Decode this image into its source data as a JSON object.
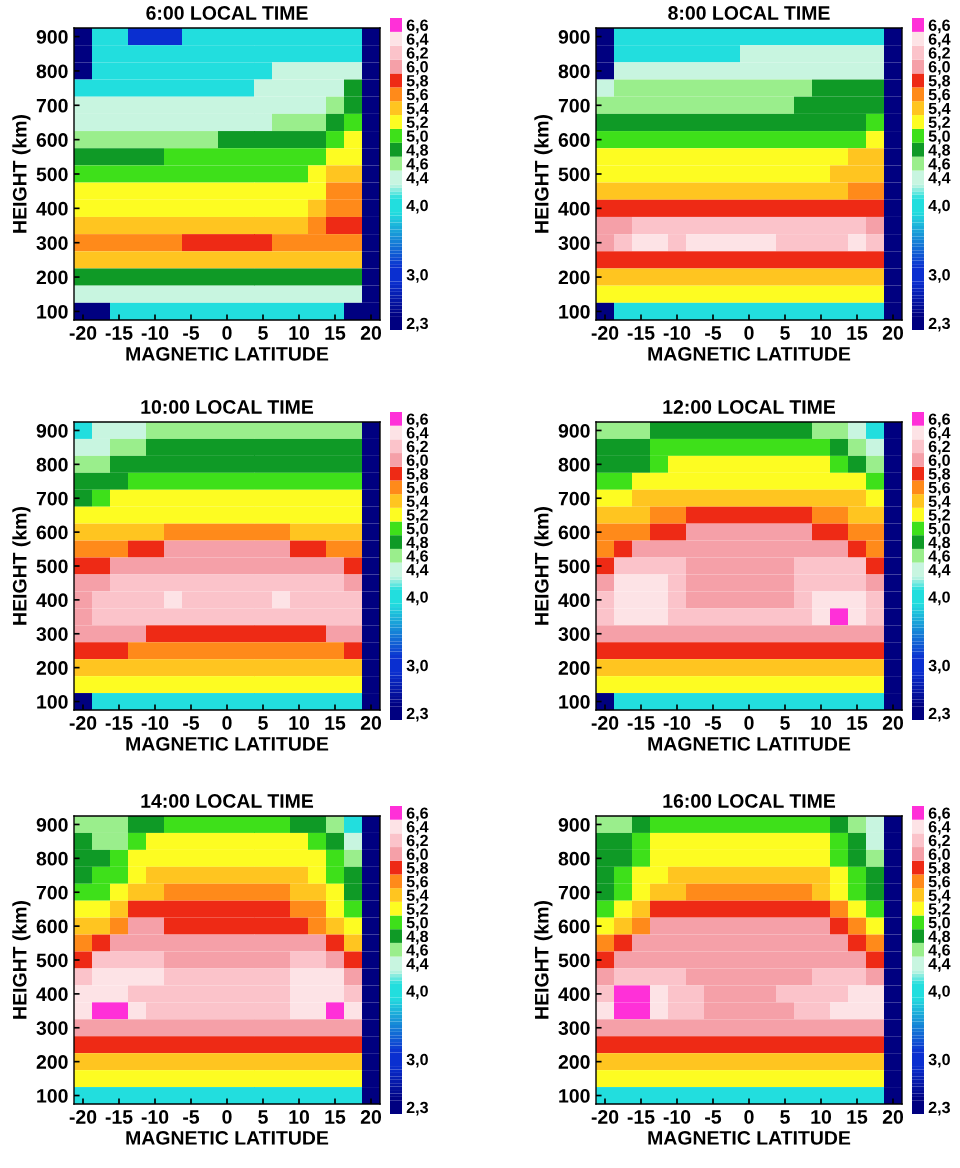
{
  "chart_data": [
    {
      "type": "heatmap",
      "title": "6:00 LOCAL TIME",
      "xlabel": "MAGNETIC LATITUDE",
      "ylabel": "HEIGHT (km)",
      "categories": [
        "-20",
        null,
        "-15",
        null,
        "-10",
        null,
        "-5",
        null,
        "0",
        null,
        "5",
        null,
        "10",
        null,
        "15",
        null,
        "20"
      ],
      "y_categories": [
        "900",
        null,
        "800",
        null,
        "700",
        null,
        "600",
        null,
        "500",
        null,
        "400",
        null,
        "300",
        null,
        "200",
        null,
        "100"
      ],
      "cticks": [
        {
          "value": 2.3,
          "label": "2,3"
        },
        {
          "value": 3.0,
          "label": "3,0"
        },
        {
          "value": 4.0,
          "label": "4,0"
        },
        {
          "value": 4.4,
          "label": "4,4"
        },
        {
          "value": 4.6,
          "label": "4,6"
        },
        {
          "value": 4.8,
          "label": "4,8"
        },
        {
          "value": 5.0,
          "label": "5,0"
        },
        {
          "value": 5.2,
          "label": "5,2"
        },
        {
          "value": 5.4,
          "label": "5,4"
        },
        {
          "value": 5.6,
          "label": "5,6"
        },
        {
          "value": 5.8,
          "label": "5,8"
        },
        {
          "value": 6.0,
          "label": "6,0"
        },
        {
          "value": 6.2,
          "label": "6,2"
        },
        {
          "value": 6.4,
          "label": "6,4"
        },
        {
          "value": 6.6,
          "label": "6,6"
        }
      ],
      "cells": [
        [
          2.3,
          4.0,
          4.0,
          3.0,
          3.0,
          3.0,
          4.0,
          4.0,
          4.0,
          4.0,
          4.0,
          4.0,
          4.0,
          4.0,
          4.0,
          4.0,
          2.3
        ],
        [
          2.3,
          4.0,
          4.0,
          4.0,
          4.0,
          4.0,
          4.0,
          4.0,
          4.0,
          4.0,
          4.0,
          4.0,
          4.0,
          4.0,
          4.0,
          4.0,
          2.3
        ],
        [
          2.3,
          4.0,
          4.0,
          4.0,
          4.0,
          4.0,
          4.0,
          4.0,
          4.0,
          4.0,
          4.0,
          4.4,
          4.4,
          4.4,
          4.4,
          4.4,
          2.3
        ],
        [
          4.0,
          4.0,
          4.0,
          4.0,
          4.0,
          4.0,
          4.0,
          4.0,
          4.0,
          4.0,
          4.4,
          4.4,
          4.4,
          4.4,
          4.4,
          4.8,
          2.3
        ],
        [
          4.4,
          4.4,
          4.4,
          4.4,
          4.4,
          4.4,
          4.4,
          4.4,
          4.4,
          4.4,
          4.4,
          4.4,
          4.4,
          4.4,
          4.6,
          4.8,
          2.3
        ],
        [
          4.4,
          4.4,
          4.4,
          4.4,
          4.4,
          4.4,
          4.4,
          4.4,
          4.4,
          4.4,
          4.4,
          4.6,
          4.6,
          4.6,
          4.8,
          5.0,
          2.3
        ],
        [
          4.6,
          4.6,
          4.6,
          4.6,
          4.6,
          4.6,
          4.6,
          4.6,
          4.8,
          4.8,
          4.8,
          4.8,
          4.8,
          4.8,
          5.0,
          5.2,
          2.3
        ],
        [
          4.8,
          4.8,
          4.8,
          4.8,
          4.8,
          5.0,
          5.0,
          5.0,
          5.0,
          5.0,
          5.0,
          5.0,
          5.0,
          5.0,
          5.2,
          5.2,
          2.3
        ],
        [
          5.0,
          5.0,
          5.0,
          5.0,
          5.0,
          5.0,
          5.0,
          5.0,
          5.0,
          5.0,
          5.0,
          5.0,
          5.0,
          5.2,
          5.4,
          5.4,
          2.3
        ],
        [
          5.2,
          5.2,
          5.2,
          5.2,
          5.2,
          5.2,
          5.2,
          5.2,
          5.2,
          5.2,
          5.2,
          5.2,
          5.2,
          5.2,
          5.6,
          5.6,
          2.3
        ],
        [
          5.2,
          5.2,
          5.2,
          5.2,
          5.2,
          5.2,
          5.2,
          5.2,
          5.2,
          5.2,
          5.2,
          5.2,
          5.2,
          5.4,
          5.6,
          5.6,
          2.3
        ],
        [
          5.4,
          5.4,
          5.4,
          5.4,
          5.4,
          5.4,
          5.4,
          5.4,
          5.4,
          5.4,
          5.4,
          5.4,
          5.4,
          5.6,
          5.8,
          5.8,
          2.3
        ],
        [
          5.6,
          5.6,
          5.6,
          5.6,
          5.6,
          5.6,
          5.8,
          5.8,
          5.8,
          5.8,
          5.8,
          5.6,
          5.6,
          5.6,
          5.6,
          5.6,
          2.3
        ],
        [
          5.4,
          5.4,
          5.4,
          5.4,
          5.4,
          5.4,
          5.4,
          5.4,
          5.4,
          5.4,
          5.4,
          5.4,
          5.4,
          5.4,
          5.4,
          5.4,
          2.3
        ],
        [
          4.8,
          4.8,
          4.8,
          4.8,
          4.8,
          4.8,
          4.8,
          4.8,
          4.8,
          4.8,
          4.8,
          4.8,
          4.8,
          4.8,
          4.8,
          4.8,
          2.3
        ],
        [
          4.4,
          4.4,
          4.4,
          4.4,
          4.4,
          4.4,
          4.4,
          4.4,
          4.4,
          4.4,
          4.4,
          4.4,
          4.4,
          4.4,
          4.4,
          4.4,
          2.3
        ],
        [
          2.3,
          2.3,
          4.0,
          4.0,
          4.0,
          4.0,
          4.0,
          4.0,
          4.0,
          4.0,
          4.0,
          4.0,
          4.0,
          4.0,
          4.0,
          2.3,
          2.3
        ]
      ]
    },
    {
      "type": "heatmap",
      "title": "8:00 LOCAL TIME",
      "xlabel": "MAGNETIC LATITUDE",
      "ylabel": "HEIGHT (km)",
      "categories": [
        "-20",
        null,
        "-15",
        null,
        "-10",
        null,
        "-5",
        null,
        "0",
        null,
        "5",
        null,
        "10",
        null,
        "15",
        null,
        "20"
      ],
      "y_categories": [
        "900",
        null,
        "800",
        null,
        "700",
        null,
        "600",
        null,
        "500",
        null,
        "400",
        null,
        "300",
        null,
        "200",
        null,
        "100"
      ],
      "cticks": [
        {
          "value": 2.3,
          "label": "2,3"
        },
        {
          "value": 3.0,
          "label": "3,0"
        },
        {
          "value": 4.0,
          "label": "4,0"
        },
        {
          "value": 4.4,
          "label": "4,4"
        },
        {
          "value": 4.6,
          "label": "4,6"
        },
        {
          "value": 4.8,
          "label": "4,8"
        },
        {
          "value": 5.0,
          "label": "5,0"
        },
        {
          "value": 5.2,
          "label": "5,2"
        },
        {
          "value": 5.4,
          "label": "5,4"
        },
        {
          "value": 5.6,
          "label": "5,6"
        },
        {
          "value": 5.8,
          "label": "5,8"
        },
        {
          "value": 6.0,
          "label": "6,0"
        },
        {
          "value": 6.2,
          "label": "6,2"
        },
        {
          "value": 6.4,
          "label": "6,4"
        },
        {
          "value": 6.6,
          "label": "6,6"
        }
      ],
      "cells": [
        [
          2.3,
          4.0,
          4.0,
          4.0,
          4.0,
          4.0,
          4.0,
          4.0,
          4.0,
          4.0,
          4.0,
          4.0,
          4.0,
          4.0,
          4.0,
          4.0,
          2.3
        ],
        [
          2.3,
          4.0,
          4.0,
          4.0,
          4.0,
          4.0,
          4.0,
          4.0,
          4.4,
          4.4,
          4.4,
          4.4,
          4.4,
          4.4,
          4.4,
          4.4,
          2.3
        ],
        [
          2.3,
          4.4,
          4.4,
          4.4,
          4.4,
          4.4,
          4.4,
          4.4,
          4.4,
          4.4,
          4.4,
          4.4,
          4.4,
          4.4,
          4.4,
          4.4,
          2.3
        ],
        [
          4.4,
          4.6,
          4.6,
          4.6,
          4.6,
          4.6,
          4.6,
          4.6,
          4.6,
          4.6,
          4.6,
          4.6,
          4.8,
          4.8,
          4.8,
          4.8,
          2.3
        ],
        [
          4.6,
          4.6,
          4.6,
          4.6,
          4.6,
          4.6,
          4.6,
          4.6,
          4.6,
          4.6,
          4.6,
          4.8,
          4.8,
          4.8,
          4.8,
          4.8,
          2.3
        ],
        [
          4.8,
          4.8,
          4.8,
          4.8,
          4.8,
          4.8,
          4.8,
          4.8,
          4.8,
          4.8,
          4.8,
          4.8,
          4.8,
          4.8,
          4.8,
          5.0,
          2.3
        ],
        [
          5.0,
          5.0,
          5.0,
          5.0,
          5.0,
          5.0,
          5.0,
          5.0,
          5.0,
          5.0,
          5.0,
          5.0,
          5.0,
          5.0,
          5.0,
          5.2,
          2.3
        ],
        [
          5.2,
          5.2,
          5.2,
          5.2,
          5.2,
          5.2,
          5.2,
          5.2,
          5.2,
          5.2,
          5.2,
          5.2,
          5.2,
          5.2,
          5.4,
          5.4,
          2.3
        ],
        [
          5.2,
          5.2,
          5.2,
          5.2,
          5.2,
          5.2,
          5.2,
          5.2,
          5.2,
          5.2,
          5.2,
          5.2,
          5.2,
          5.4,
          5.4,
          5.4,
          2.3
        ],
        [
          5.4,
          5.4,
          5.4,
          5.4,
          5.4,
          5.4,
          5.4,
          5.4,
          5.4,
          5.4,
          5.4,
          5.4,
          5.4,
          5.4,
          5.6,
          5.6,
          2.3
        ],
        [
          5.8,
          5.8,
          5.8,
          5.8,
          5.8,
          5.8,
          5.8,
          5.8,
          5.8,
          5.8,
          5.8,
          5.8,
          5.8,
          5.8,
          5.8,
          5.8,
          2.3
        ],
        [
          6.0,
          6.0,
          6.2,
          6.2,
          6.2,
          6.2,
          6.2,
          6.2,
          6.2,
          6.2,
          6.2,
          6.2,
          6.2,
          6.2,
          6.2,
          6.0,
          2.3
        ],
        [
          6.0,
          6.2,
          6.4,
          6.4,
          6.2,
          6.4,
          6.4,
          6.4,
          6.4,
          6.4,
          6.2,
          6.2,
          6.2,
          6.2,
          6.4,
          6.2,
          2.3
        ],
        [
          5.8,
          5.8,
          5.8,
          5.8,
          5.8,
          5.8,
          5.8,
          5.8,
          5.8,
          5.8,
          5.8,
          5.8,
          5.8,
          5.8,
          5.8,
          5.8,
          2.3
        ],
        [
          5.4,
          5.4,
          5.4,
          5.4,
          5.4,
          5.4,
          5.4,
          5.4,
          5.4,
          5.4,
          5.4,
          5.4,
          5.4,
          5.4,
          5.4,
          5.4,
          2.3
        ],
        [
          5.2,
          5.2,
          5.2,
          5.2,
          5.2,
          5.2,
          5.2,
          5.2,
          5.2,
          5.2,
          5.2,
          5.2,
          5.2,
          5.2,
          5.2,
          5.2,
          2.3
        ],
        [
          2.3,
          4.0,
          4.0,
          4.0,
          4.0,
          4.0,
          4.0,
          4.0,
          4.0,
          4.0,
          4.0,
          4.0,
          4.0,
          4.0,
          4.0,
          4.0,
          2.3
        ]
      ]
    },
    {
      "type": "heatmap",
      "title": "10:00 LOCAL TIME",
      "xlabel": "MAGNETIC LATITUDE",
      "ylabel": "HEIGHT (km)",
      "categories": [
        "-20",
        null,
        "-15",
        null,
        "-10",
        null,
        "-5",
        null,
        "0",
        null,
        "5",
        null,
        "10",
        null,
        "15",
        null,
        "20"
      ],
      "y_categories": [
        "900",
        null,
        "800",
        null,
        "700",
        null,
        "600",
        null,
        "500",
        null,
        "400",
        null,
        "300",
        null,
        "200",
        null,
        "100"
      ],
      "cticks": [
        {
          "value": 2.3,
          "label": "2,3"
        },
        {
          "value": 3.0,
          "label": "3,0"
        },
        {
          "value": 4.0,
          "label": "4,0"
        },
        {
          "value": 4.4,
          "label": "4,4"
        },
        {
          "value": 4.6,
          "label": "4,6"
        },
        {
          "value": 4.8,
          "label": "4,8"
        },
        {
          "value": 5.0,
          "label": "5,0"
        },
        {
          "value": 5.2,
          "label": "5,2"
        },
        {
          "value": 5.4,
          "label": "5,4"
        },
        {
          "value": 5.6,
          "label": "5,6"
        },
        {
          "value": 5.8,
          "label": "5,8"
        },
        {
          "value": 6.0,
          "label": "6,0"
        },
        {
          "value": 6.2,
          "label": "6,2"
        },
        {
          "value": 6.4,
          "label": "6,4"
        },
        {
          "value": 6.6,
          "label": "6,6"
        }
      ],
      "cells": [
        [
          4.0,
          4.4,
          4.4,
          4.4,
          4.6,
          4.6,
          4.6,
          4.6,
          4.6,
          4.6,
          4.6,
          4.6,
          4.6,
          4.6,
          4.6,
          4.6,
          2.3
        ],
        [
          4.4,
          4.4,
          4.6,
          4.6,
          4.8,
          4.8,
          4.8,
          4.8,
          4.8,
          4.8,
          4.8,
          4.8,
          4.8,
          4.8,
          4.8,
          4.8,
          2.3
        ],
        [
          4.6,
          4.6,
          4.8,
          4.8,
          4.8,
          4.8,
          4.8,
          4.8,
          4.8,
          4.8,
          4.8,
          4.8,
          4.8,
          4.8,
          4.8,
          4.8,
          2.3
        ],
        [
          4.8,
          4.8,
          4.8,
          5.0,
          5.0,
          5.0,
          5.0,
          5.0,
          5.0,
          5.0,
          5.0,
          5.0,
          5.0,
          5.0,
          5.0,
          5.0,
          2.3
        ],
        [
          4.8,
          5.0,
          5.2,
          5.2,
          5.2,
          5.2,
          5.2,
          5.2,
          5.2,
          5.2,
          5.2,
          5.2,
          5.2,
          5.2,
          5.2,
          5.2,
          2.3
        ],
        [
          5.2,
          5.2,
          5.2,
          5.2,
          5.2,
          5.2,
          5.2,
          5.2,
          5.2,
          5.2,
          5.2,
          5.2,
          5.2,
          5.2,
          5.2,
          5.2,
          2.3
        ],
        [
          5.4,
          5.4,
          5.4,
          5.4,
          5.4,
          5.6,
          5.6,
          5.6,
          5.6,
          5.6,
          5.6,
          5.6,
          5.4,
          5.4,
          5.4,
          5.4,
          2.3
        ],
        [
          5.6,
          5.6,
          5.6,
          5.8,
          5.8,
          6.0,
          6.0,
          6.0,
          6.0,
          6.0,
          6.0,
          6.0,
          5.8,
          5.8,
          5.6,
          5.6,
          2.3
        ],
        [
          5.8,
          5.8,
          6.0,
          6.0,
          6.0,
          6.0,
          6.0,
          6.0,
          6.0,
          6.0,
          6.0,
          6.0,
          6.0,
          6.0,
          6.0,
          5.8,
          2.3
        ],
        [
          6.0,
          6.0,
          6.2,
          6.2,
          6.2,
          6.2,
          6.2,
          6.2,
          6.2,
          6.2,
          6.2,
          6.2,
          6.2,
          6.2,
          6.2,
          6.0,
          2.3
        ],
        [
          6.0,
          6.2,
          6.2,
          6.2,
          6.2,
          6.4,
          6.2,
          6.2,
          6.2,
          6.2,
          6.2,
          6.4,
          6.2,
          6.2,
          6.2,
          6.2,
          2.3
        ],
        [
          6.0,
          6.2,
          6.2,
          6.2,
          6.2,
          6.2,
          6.2,
          6.2,
          6.2,
          6.2,
          6.2,
          6.2,
          6.2,
          6.2,
          6.2,
          6.2,
          2.3
        ],
        [
          6.0,
          6.0,
          6.0,
          6.0,
          5.8,
          5.8,
          5.8,
          5.8,
          5.8,
          5.8,
          5.8,
          5.8,
          5.8,
          5.8,
          6.0,
          6.0,
          2.3
        ],
        [
          5.8,
          5.8,
          5.8,
          5.6,
          5.6,
          5.6,
          5.6,
          5.6,
          5.6,
          5.6,
          5.6,
          5.6,
          5.6,
          5.6,
          5.6,
          5.8,
          2.3
        ],
        [
          5.4,
          5.4,
          5.4,
          5.4,
          5.4,
          5.4,
          5.4,
          5.4,
          5.4,
          5.4,
          5.4,
          5.4,
          5.4,
          5.4,
          5.4,
          5.4,
          2.3
        ],
        [
          5.2,
          5.2,
          5.2,
          5.2,
          5.2,
          5.2,
          5.2,
          5.2,
          5.2,
          5.2,
          5.2,
          5.2,
          5.2,
          5.2,
          5.2,
          5.2,
          2.3
        ],
        [
          2.3,
          4.0,
          4.0,
          4.0,
          4.0,
          4.0,
          4.0,
          4.0,
          4.0,
          4.0,
          4.0,
          4.0,
          4.0,
          4.0,
          4.0,
          4.0,
          2.3
        ]
      ]
    },
    {
      "type": "heatmap",
      "title": "12:00 LOCAL TIME",
      "xlabel": "MAGNETIC LATITUDE",
      "ylabel": "HEIGHT (km)",
      "categories": [
        "-20",
        null,
        "-15",
        null,
        "-10",
        null,
        "-5",
        null,
        "0",
        null,
        "5",
        null,
        "10",
        null,
        "15",
        null,
        "20"
      ],
      "y_categories": [
        "900",
        null,
        "800",
        null,
        "700",
        null,
        "600",
        null,
        "500",
        null,
        "400",
        null,
        "300",
        null,
        "200",
        null,
        "100"
      ],
      "cticks": [
        {
          "value": 2.3,
          "label": "2,3"
        },
        {
          "value": 3.0,
          "label": "3,0"
        },
        {
          "value": 4.0,
          "label": "4,0"
        },
        {
          "value": 4.4,
          "label": "4,4"
        },
        {
          "value": 4.6,
          "label": "4,6"
        },
        {
          "value": 4.8,
          "label": "4,8"
        },
        {
          "value": 5.0,
          "label": "5,0"
        },
        {
          "value": 5.2,
          "label": "5,2"
        },
        {
          "value": 5.4,
          "label": "5,4"
        },
        {
          "value": 5.6,
          "label": "5,6"
        },
        {
          "value": 5.8,
          "label": "5,8"
        },
        {
          "value": 6.0,
          "label": "6,0"
        },
        {
          "value": 6.2,
          "label": "6,2"
        },
        {
          "value": 6.4,
          "label": "6,4"
        },
        {
          "value": 6.6,
          "label": "6,6"
        }
      ],
      "cells": [
        [
          4.6,
          4.6,
          4.6,
          4.8,
          4.8,
          4.8,
          4.8,
          4.8,
          4.8,
          4.8,
          4.8,
          4.8,
          4.6,
          4.6,
          4.4,
          4.0,
          2.3
        ],
        [
          4.8,
          4.8,
          4.8,
          5.0,
          5.0,
          5.0,
          5.0,
          5.0,
          5.0,
          5.0,
          5.0,
          5.0,
          5.0,
          4.8,
          4.6,
          4.4,
          2.3
        ],
        [
          4.8,
          4.8,
          4.8,
          5.0,
          5.2,
          5.2,
          5.2,
          5.2,
          5.2,
          5.2,
          5.2,
          5.2,
          5.2,
          5.0,
          4.8,
          4.6,
          2.3
        ],
        [
          5.0,
          5.0,
          5.2,
          5.2,
          5.2,
          5.2,
          5.2,
          5.2,
          5.2,
          5.2,
          5.2,
          5.2,
          5.2,
          5.2,
          5.2,
          5.0,
          2.3
        ],
        [
          5.2,
          5.2,
          5.4,
          5.4,
          5.4,
          5.4,
          5.4,
          5.4,
          5.4,
          5.4,
          5.4,
          5.4,
          5.4,
          5.4,
          5.4,
          5.2,
          2.3
        ],
        [
          5.4,
          5.4,
          5.4,
          5.6,
          5.6,
          5.8,
          5.8,
          5.8,
          5.8,
          5.8,
          5.8,
          5.8,
          5.6,
          5.6,
          5.4,
          5.4,
          2.3
        ],
        [
          5.6,
          5.6,
          5.6,
          5.8,
          5.8,
          6.0,
          6.0,
          6.0,
          6.0,
          6.0,
          6.0,
          6.0,
          5.8,
          5.8,
          5.6,
          5.6,
          2.3
        ],
        [
          5.6,
          5.8,
          6.0,
          6.0,
          6.0,
          6.0,
          6.0,
          6.0,
          6.0,
          6.0,
          6.0,
          6.0,
          6.0,
          6.0,
          5.8,
          5.6,
          2.3
        ],
        [
          5.8,
          6.2,
          6.2,
          6.2,
          6.2,
          6.0,
          6.0,
          6.0,
          6.0,
          6.0,
          6.0,
          6.2,
          6.2,
          6.2,
          6.2,
          5.8,
          2.3
        ],
        [
          6.0,
          6.4,
          6.4,
          6.4,
          6.2,
          6.0,
          6.0,
          6.0,
          6.0,
          6.0,
          6.0,
          6.2,
          6.2,
          6.2,
          6.2,
          6.0,
          2.3
        ],
        [
          6.2,
          6.4,
          6.4,
          6.4,
          6.2,
          6.0,
          6.0,
          6.0,
          6.0,
          6.0,
          6.0,
          6.2,
          6.4,
          6.4,
          6.4,
          6.2,
          2.3
        ],
        [
          6.2,
          6.4,
          6.4,
          6.4,
          6.2,
          6.2,
          6.2,
          6.2,
          6.2,
          6.2,
          6.2,
          6.2,
          6.4,
          6.6,
          6.4,
          6.2,
          2.3
        ],
        [
          6.0,
          6.0,
          6.0,
          6.0,
          6.0,
          6.0,
          6.0,
          6.0,
          6.0,
          6.0,
          6.0,
          6.0,
          6.0,
          6.0,
          6.0,
          6.0,
          2.3
        ],
        [
          5.8,
          5.8,
          5.8,
          5.8,
          5.8,
          5.8,
          5.8,
          5.8,
          5.8,
          5.8,
          5.8,
          5.8,
          5.8,
          5.8,
          5.8,
          5.8,
          2.3
        ],
        [
          5.4,
          5.4,
          5.4,
          5.4,
          5.4,
          5.4,
          5.4,
          5.4,
          5.4,
          5.4,
          5.4,
          5.4,
          5.4,
          5.4,
          5.4,
          5.4,
          2.3
        ],
        [
          5.2,
          5.2,
          5.2,
          5.2,
          5.2,
          5.2,
          5.2,
          5.2,
          5.2,
          5.2,
          5.2,
          5.2,
          5.2,
          5.2,
          5.2,
          5.2,
          2.3
        ],
        [
          2.3,
          4.0,
          4.0,
          4.0,
          4.0,
          4.0,
          4.0,
          4.0,
          4.0,
          4.0,
          4.0,
          4.0,
          4.0,
          4.0,
          4.0,
          4.0,
          2.3
        ]
      ]
    },
    {
      "type": "heatmap",
      "title": "14:00 LOCAL TIME",
      "xlabel": "MAGNETIC LATITUDE",
      "ylabel": "HEIGHT (km)",
      "categories": [
        "-20",
        null,
        "-15",
        null,
        "-10",
        null,
        "-5",
        null,
        "0",
        null,
        "5",
        null,
        "10",
        null,
        "15",
        null,
        "20"
      ],
      "y_categories": [
        "900",
        null,
        "800",
        null,
        "700",
        null,
        "600",
        null,
        "500",
        null,
        "400",
        null,
        "300",
        null,
        "200",
        null,
        "100"
      ],
      "cticks": [
        {
          "value": 2.3,
          "label": "2,3"
        },
        {
          "value": 3.0,
          "label": "3,0"
        },
        {
          "value": 4.0,
          "label": "4,0"
        },
        {
          "value": 4.4,
          "label": "4,4"
        },
        {
          "value": 4.6,
          "label": "4,6"
        },
        {
          "value": 4.8,
          "label": "4,8"
        },
        {
          "value": 5.0,
          "label": "5,0"
        },
        {
          "value": 5.2,
          "label": "5,2"
        },
        {
          "value": 5.4,
          "label": "5,4"
        },
        {
          "value": 5.6,
          "label": "5,6"
        },
        {
          "value": 5.8,
          "label": "5,8"
        },
        {
          "value": 6.0,
          "label": "6,0"
        },
        {
          "value": 6.2,
          "label": "6,2"
        },
        {
          "value": 6.4,
          "label": "6,4"
        },
        {
          "value": 6.6,
          "label": "6,6"
        }
      ],
      "cells": [
        [
          4.6,
          4.6,
          4.6,
          4.8,
          4.8,
          5.0,
          5.0,
          5.0,
          5.0,
          5.0,
          5.0,
          5.0,
          4.8,
          4.8,
          4.6,
          4.0,
          2.3
        ],
        [
          4.8,
          4.6,
          4.6,
          5.0,
          5.2,
          5.2,
          5.2,
          5.2,
          5.2,
          5.2,
          5.2,
          5.2,
          5.2,
          5.0,
          4.8,
          4.4,
          2.3
        ],
        [
          4.8,
          4.8,
          5.0,
          5.2,
          5.2,
          5.2,
          5.2,
          5.2,
          5.2,
          5.2,
          5.2,
          5.2,
          5.2,
          5.2,
          5.0,
          4.6,
          2.3
        ],
        [
          4.8,
          5.0,
          5.0,
          5.2,
          5.4,
          5.4,
          5.4,
          5.4,
          5.4,
          5.4,
          5.4,
          5.4,
          5.4,
          5.2,
          5.0,
          4.8,
          2.3
        ],
        [
          5.0,
          5.0,
          5.2,
          5.4,
          5.4,
          5.6,
          5.6,
          5.6,
          5.6,
          5.6,
          5.6,
          5.6,
          5.4,
          5.4,
          5.2,
          4.8,
          2.3
        ],
        [
          5.2,
          5.2,
          5.4,
          5.8,
          5.8,
          5.8,
          5.8,
          5.8,
          5.8,
          5.8,
          5.8,
          5.8,
          5.6,
          5.6,
          5.2,
          5.0,
          2.3
        ],
        [
          5.4,
          5.4,
          5.6,
          6.0,
          6.0,
          5.8,
          5.8,
          5.8,
          5.8,
          5.8,
          5.8,
          5.8,
          5.8,
          5.6,
          5.4,
          5.2,
          2.3
        ],
        [
          5.6,
          5.8,
          6.0,
          6.0,
          6.0,
          6.0,
          6.0,
          6.0,
          6.0,
          6.0,
          6.0,
          6.0,
          6.0,
          6.0,
          5.8,
          5.4,
          2.3
        ],
        [
          5.8,
          6.2,
          6.2,
          6.2,
          6.2,
          6.0,
          6.0,
          6.0,
          6.0,
          6.0,
          6.0,
          6.0,
          6.2,
          6.2,
          6.0,
          5.8,
          2.3
        ],
        [
          6.2,
          6.4,
          6.4,
          6.4,
          6.4,
          6.2,
          6.2,
          6.2,
          6.2,
          6.2,
          6.2,
          6.2,
          6.4,
          6.4,
          6.4,
          6.0,
          2.3
        ],
        [
          6.4,
          6.4,
          6.4,
          6.2,
          6.2,
          6.2,
          6.2,
          6.2,
          6.2,
          6.2,
          6.2,
          6.2,
          6.4,
          6.4,
          6.4,
          6.2,
          2.3
        ],
        [
          6.4,
          6.6,
          6.6,
          6.4,
          6.2,
          6.2,
          6.2,
          6.2,
          6.2,
          6.2,
          6.2,
          6.2,
          6.4,
          6.4,
          6.6,
          6.4,
          2.3
        ],
        [
          6.0,
          6.0,
          6.0,
          6.0,
          6.0,
          6.0,
          6.0,
          6.0,
          6.0,
          6.0,
          6.0,
          6.0,
          6.0,
          6.0,
          6.0,
          6.0,
          2.3
        ],
        [
          5.8,
          5.8,
          5.8,
          5.8,
          5.8,
          5.8,
          5.8,
          5.8,
          5.8,
          5.8,
          5.8,
          5.8,
          5.8,
          5.8,
          5.8,
          5.8,
          2.3
        ],
        [
          5.4,
          5.4,
          5.4,
          5.4,
          5.4,
          5.4,
          5.4,
          5.4,
          5.4,
          5.4,
          5.4,
          5.4,
          5.4,
          5.4,
          5.4,
          5.4,
          2.3
        ],
        [
          5.2,
          5.2,
          5.2,
          5.2,
          5.2,
          5.2,
          5.2,
          5.2,
          5.2,
          5.2,
          5.2,
          5.2,
          5.2,
          5.2,
          5.2,
          5.2,
          2.3
        ],
        [
          4.0,
          4.0,
          4.0,
          4.0,
          4.0,
          4.0,
          4.0,
          4.0,
          4.0,
          4.0,
          4.0,
          4.0,
          4.0,
          4.0,
          4.0,
          4.0,
          2.3
        ]
      ]
    },
    {
      "type": "heatmap",
      "title": "16:00 LOCAL TIME",
      "xlabel": "MAGNETIC LATITUDE",
      "ylabel": "HEIGHT (km)",
      "categories": [
        "-20",
        null,
        "-15",
        null,
        "-10",
        null,
        "-5",
        null,
        "0",
        null,
        "5",
        null,
        "10",
        null,
        "15",
        null,
        "20"
      ],
      "y_categories": [
        "900",
        null,
        "800",
        null,
        "700",
        null,
        "600",
        null,
        "500",
        null,
        "400",
        null,
        "300",
        null,
        "200",
        null,
        "100"
      ],
      "cticks": [
        {
          "value": 2.3,
          "label": "2,3"
        },
        {
          "value": 3.0,
          "label": "3,0"
        },
        {
          "value": 4.0,
          "label": "4,0"
        },
        {
          "value": 4.4,
          "label": "4,4"
        },
        {
          "value": 4.6,
          "label": "4,6"
        },
        {
          "value": 4.8,
          "label": "4,8"
        },
        {
          "value": 5.0,
          "label": "5,0"
        },
        {
          "value": 5.2,
          "label": "5,2"
        },
        {
          "value": 5.4,
          "label": "5,4"
        },
        {
          "value": 5.6,
          "label": "5,6"
        },
        {
          "value": 5.8,
          "label": "5,8"
        },
        {
          "value": 6.0,
          "label": "6,0"
        },
        {
          "value": 6.2,
          "label": "6,2"
        },
        {
          "value": 6.4,
          "label": "6,4"
        },
        {
          "value": 6.6,
          "label": "6,6"
        }
      ],
      "cells": [
        [
          4.6,
          4.6,
          4.8,
          5.0,
          5.0,
          5.0,
          5.0,
          5.0,
          5.0,
          5.0,
          5.0,
          5.0,
          5.0,
          4.8,
          4.6,
          4.4,
          2.3
        ],
        [
          4.8,
          4.8,
          5.0,
          5.2,
          5.2,
          5.2,
          5.2,
          5.2,
          5.2,
          5.2,
          5.2,
          5.2,
          5.2,
          5.0,
          4.8,
          4.4,
          2.3
        ],
        [
          4.8,
          4.8,
          5.0,
          5.2,
          5.2,
          5.2,
          5.2,
          5.2,
          5.2,
          5.2,
          5.2,
          5.2,
          5.2,
          5.0,
          4.8,
          4.6,
          2.3
        ],
        [
          4.8,
          5.0,
          5.2,
          5.2,
          5.4,
          5.4,
          5.4,
          5.4,
          5.4,
          5.4,
          5.4,
          5.4,
          5.4,
          5.2,
          5.0,
          4.8,
          2.3
        ],
        [
          4.8,
          5.0,
          5.2,
          5.4,
          5.4,
          5.6,
          5.6,
          5.6,
          5.6,
          5.6,
          5.6,
          5.6,
          5.4,
          5.2,
          5.0,
          4.8,
          2.3
        ],
        [
          5.0,
          5.2,
          5.4,
          5.8,
          5.8,
          5.8,
          5.8,
          5.8,
          5.8,
          5.8,
          5.8,
          5.8,
          5.8,
          5.6,
          5.2,
          5.0,
          2.3
        ],
        [
          5.2,
          5.4,
          5.6,
          6.0,
          6.0,
          6.0,
          6.0,
          6.0,
          6.0,
          6.0,
          6.0,
          6.0,
          6.0,
          5.8,
          5.6,
          5.2,
          2.3
        ],
        [
          5.6,
          5.8,
          6.0,
          6.0,
          6.0,
          6.0,
          6.0,
          6.0,
          6.0,
          6.0,
          6.0,
          6.0,
          6.0,
          6.0,
          5.8,
          5.6,
          2.3
        ],
        [
          5.8,
          6.0,
          6.0,
          6.0,
          6.0,
          6.0,
          6.0,
          6.0,
          6.0,
          6.0,
          6.0,
          6.0,
          6.0,
          6.0,
          6.0,
          5.8,
          2.3
        ],
        [
          6.0,
          6.2,
          6.2,
          6.2,
          6.2,
          6.0,
          6.0,
          6.0,
          6.0,
          6.0,
          6.0,
          6.0,
          6.2,
          6.2,
          6.2,
          6.0,
          2.3
        ],
        [
          6.2,
          6.6,
          6.6,
          6.4,
          6.2,
          6.2,
          6.0,
          6.0,
          6.0,
          6.0,
          6.2,
          6.2,
          6.2,
          6.2,
          6.4,
          6.4,
          2.3
        ],
        [
          6.4,
          6.6,
          6.6,
          6.4,
          6.2,
          6.2,
          6.0,
          6.0,
          6.0,
          6.0,
          6.0,
          6.2,
          6.2,
          6.4,
          6.4,
          6.4,
          2.3
        ],
        [
          6.0,
          6.0,
          6.0,
          6.0,
          6.0,
          6.0,
          6.0,
          6.0,
          6.0,
          6.0,
          6.0,
          6.0,
          6.0,
          6.0,
          6.0,
          6.0,
          2.3
        ],
        [
          5.8,
          5.8,
          5.8,
          5.8,
          5.8,
          5.8,
          5.8,
          5.8,
          5.8,
          5.8,
          5.8,
          5.8,
          5.8,
          5.8,
          5.8,
          5.8,
          2.3
        ],
        [
          5.4,
          5.4,
          5.4,
          5.4,
          5.4,
          5.4,
          5.4,
          5.4,
          5.4,
          5.4,
          5.4,
          5.4,
          5.4,
          5.4,
          5.4,
          5.4,
          2.3
        ],
        [
          5.2,
          5.2,
          5.2,
          5.2,
          5.2,
          5.2,
          5.2,
          5.2,
          5.2,
          5.2,
          5.2,
          5.2,
          5.2,
          5.2,
          5.2,
          5.2,
          2.3
        ],
        [
          4.0,
          4.0,
          4.0,
          4.0,
          4.0,
          4.0,
          4.0,
          4.0,
          4.0,
          4.0,
          4.0,
          4.0,
          4.0,
          4.0,
          4.0,
          4.0,
          2.3
        ]
      ]
    }
  ]
}
